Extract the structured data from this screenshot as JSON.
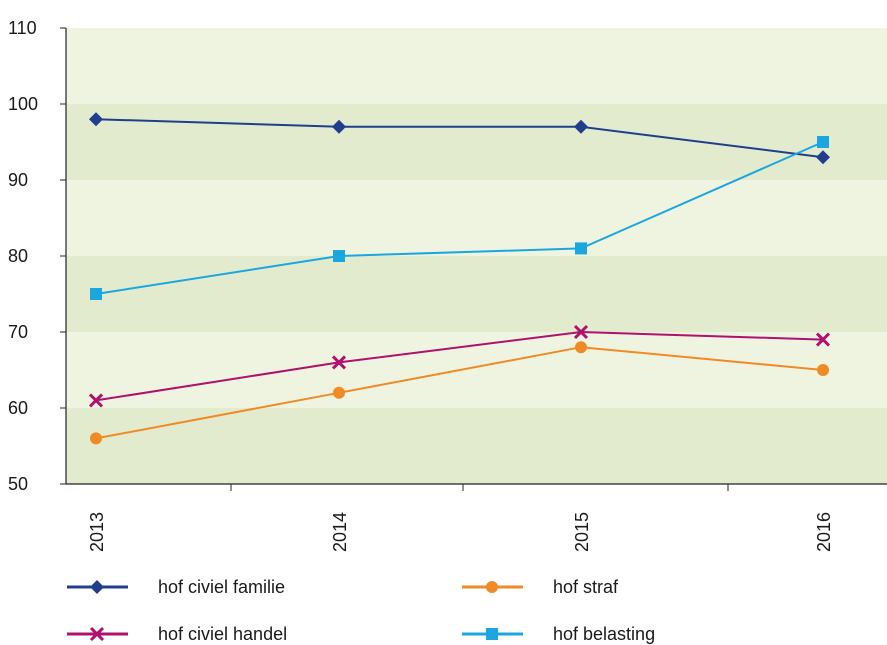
{
  "chart_data": {
    "type": "line",
    "title": "",
    "xlabel": "",
    "ylabel": "",
    "categories": [
      "2013",
      "2014",
      "2015",
      "2016"
    ],
    "ylim": [
      50,
      110
    ],
    "yticks": [
      50,
      60,
      70,
      80,
      90,
      100,
      110
    ],
    "grid": "horizontal alternating bands",
    "band_colors": [
      "#e3ebcf",
      "#eff4e0"
    ],
    "legend_position": "bottom",
    "series": [
      {
        "name": "hof civiel familie",
        "values": [
          98,
          97,
          97,
          93
        ],
        "color": "#1f3f8c",
        "marker": "diamond"
      },
      {
        "name": "hof straf",
        "values": [
          56,
          62,
          68,
          65
        ],
        "color": "#f08a24",
        "marker": "circle"
      },
      {
        "name": "hof civiel handel",
        "values": [
          61,
          66,
          70,
          69
        ],
        "color": "#b0106e",
        "marker": "x"
      },
      {
        "name": "hof belasting",
        "values": [
          75,
          80,
          81,
          95
        ],
        "color": "#1ba6e0",
        "marker": "square"
      }
    ]
  }
}
